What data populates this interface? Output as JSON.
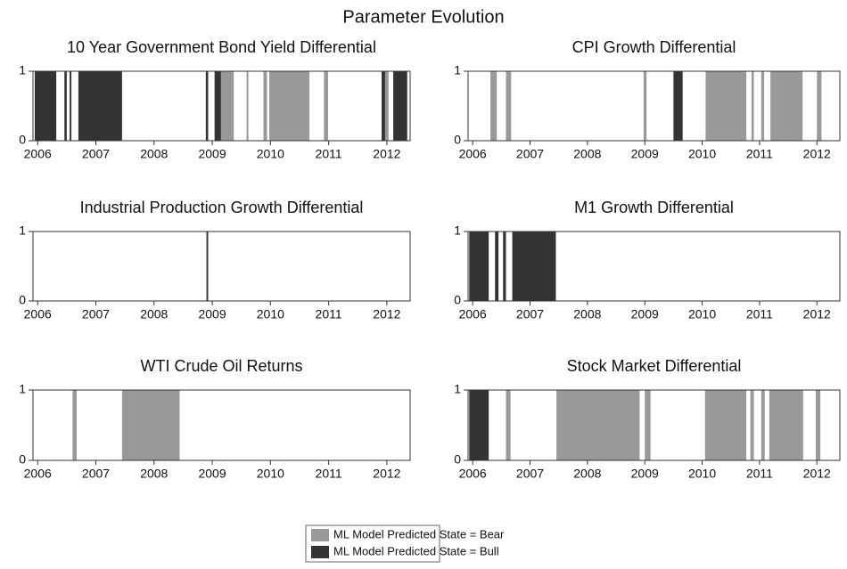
{
  "title": "Parameter Evolution",
  "legend": [
    {
      "name": "ML Model Predicted State = Bear",
      "color": "#999999"
    },
    {
      "name": "ML Model Predicted State = Bull",
      "color": "#333333"
    }
  ],
  "chart_data": [
    {
      "type": "span",
      "title": "10 Year Government Bond Yield Differential",
      "xlim": [
        2005.92,
        2012.4
      ],
      "xticks": [
        2006,
        2007,
        2008,
        2009,
        2010,
        2011,
        2012
      ],
      "ylim": [
        0,
        1
      ],
      "yticks": [
        0,
        1
      ],
      "series": [
        {
          "spans": [
            [
              2009.15,
              2009.37
            ],
            [
              2009.59,
              2009.62
            ],
            [
              2009.88,
              2009.94
            ],
            [
              2009.98,
              2010.67
            ],
            [
              2010.92,
              2010.99
            ],
            [
              2011.97,
              2012.03
            ]
          ]
        },
        {
          "spans": [
            [
              2005.95,
              2006.32
            ],
            [
              2006.46,
              2006.5
            ],
            [
              2006.55,
              2006.58
            ],
            [
              2006.7,
              2007.45
            ],
            [
              2008.89,
              2008.93
            ],
            [
              2009.04,
              2009.15
            ],
            [
              2011.91,
              2011.97
            ],
            [
              2012.11,
              2012.35
            ]
          ]
        }
      ]
    },
    {
      "type": "span",
      "title": "CPI Growth Differential",
      "xlim": [
        2005.92,
        2012.4
      ],
      "xticks": [
        2006,
        2007,
        2008,
        2009,
        2010,
        2011,
        2012
      ],
      "ylim": [
        0,
        1
      ],
      "yticks": [
        0,
        1
      ],
      "series": [
        {
          "spans": [
            [
              2006.31,
              2006.42
            ],
            [
              2006.58,
              2006.67
            ],
            [
              2008.98,
              2009.03
            ],
            [
              2010.06,
              2010.77
            ],
            [
              2010.86,
              2010.9
            ],
            [
              2011.03,
              2011.08
            ],
            [
              2011.19,
              2011.75
            ],
            [
              2012.0,
              2012.08
            ]
          ]
        },
        {
          "spans": [
            [
              2009.5,
              2009.66
            ]
          ]
        }
      ]
    },
    {
      "type": "span",
      "title": "Industrial Production Growth Differential",
      "xlim": [
        2005.92,
        2012.4
      ],
      "xticks": [
        2006,
        2007,
        2008,
        2009,
        2010,
        2011,
        2012
      ],
      "ylim": [
        0,
        1
      ],
      "yticks": [
        0,
        1
      ],
      "series": [
        {
          "spans": []
        },
        {
          "spans": [
            [
              2008.9,
              2008.93
            ]
          ]
        }
      ]
    },
    {
      "type": "span",
      "title": "M1 Growth Differential",
      "xlim": [
        2005.92,
        2012.4
      ],
      "xticks": [
        2006,
        2007,
        2008,
        2009,
        2010,
        2011,
        2012
      ],
      "ylim": [
        0,
        1
      ],
      "yticks": [
        0,
        1
      ],
      "series": [
        {
          "spans": []
        },
        {
          "spans": [
            [
              2005.94,
              2006.28
            ],
            [
              2006.39,
              2006.45
            ],
            [
              2006.53,
              2006.58
            ],
            [
              2006.69,
              2007.45
            ]
          ]
        }
      ]
    },
    {
      "type": "span",
      "title": "WTI Crude Oil Returns",
      "xlim": [
        2005.92,
        2012.4
      ],
      "xticks": [
        2006,
        2007,
        2008,
        2009,
        2010,
        2011,
        2012
      ],
      "ylim": [
        0,
        1
      ],
      "yticks": [
        0,
        1
      ],
      "series": [
        {
          "spans": [
            [
              2006.6,
              2006.67
            ],
            [
              2007.45,
              2008.44
            ]
          ]
        },
        {
          "spans": []
        }
      ]
    },
    {
      "type": "span",
      "title": "Stock Market Differential",
      "xlim": [
        2005.92,
        2012.4
      ],
      "xticks": [
        2006,
        2007,
        2008,
        2009,
        2010,
        2011,
        2012
      ],
      "ylim": [
        0,
        1
      ],
      "yticks": [
        0,
        1
      ],
      "series": [
        {
          "spans": [
            [
              2006.58,
              2006.66
            ],
            [
              2007.46,
              2008.91
            ],
            [
              2009.0,
              2009.1
            ],
            [
              2010.05,
              2010.77
            ],
            [
              2010.84,
              2010.9
            ],
            [
              2011.03,
              2011.09
            ],
            [
              2011.17,
              2011.76
            ],
            [
              2011.98,
              2012.06
            ]
          ]
        },
        {
          "spans": [
            [
              2005.94,
              2006.28
            ]
          ]
        }
      ]
    }
  ]
}
